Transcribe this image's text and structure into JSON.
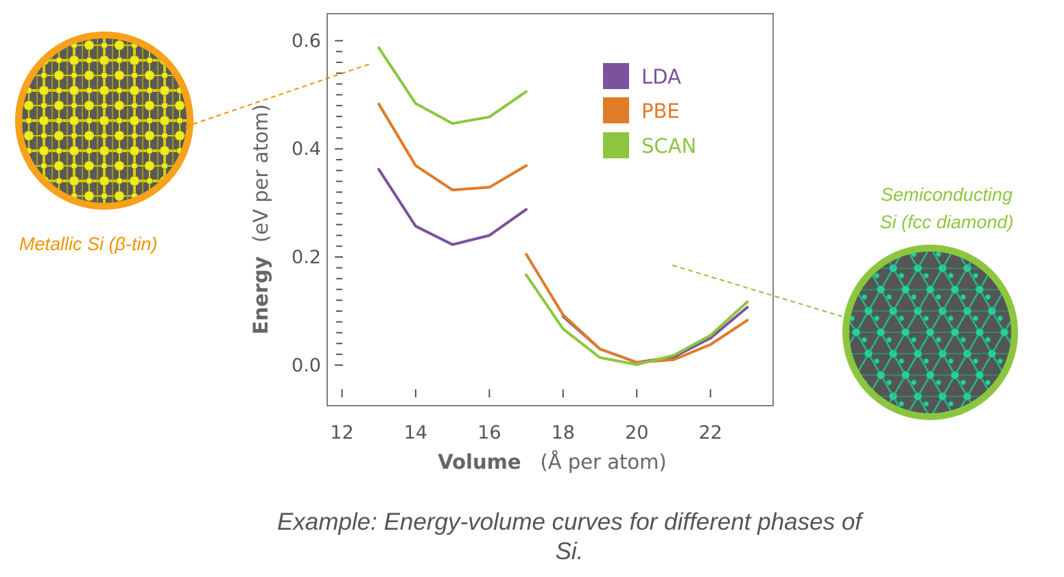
{
  "chart_data": {
    "type": "line",
    "xlabel_bold": "Volume",
    "xlabel_unit": "(Å per atom)",
    "ylabel_bold": "Energy",
    "ylabel_unit": "(eV per atom)",
    "xlim": [
      11.6,
      23.7
    ],
    "ylim": [
      -0.075,
      0.65
    ],
    "xticks": [
      12,
      14,
      16,
      18,
      20,
      22
    ],
    "xtick_labels": [
      "12",
      "14",
      "16",
      "18",
      "20",
      "22"
    ],
    "yticks": [
      0.0,
      0.2,
      0.4,
      0.6
    ],
    "ytick_labels": [
      "0.0",
      "0.2",
      "0.4",
      "0.6"
    ],
    "legend_position": "top-right",
    "series": [
      {
        "name": "LDA",
        "color": "#7B529E",
        "segments": [
          {
            "x": [
              13,
              14,
              15,
              16,
              17
            ],
            "y": [
              0.362,
              0.257,
              0.223,
              0.24,
              0.288
            ]
          },
          {
            "x": [
              18,
              19,
              20,
              21,
              22,
              23
            ],
            "y": [
              0.09,
              0.03,
              0.005,
              0.015,
              0.05,
              0.107
            ]
          }
        ]
      },
      {
        "name": "PBE",
        "color": "#E07B28",
        "segments": [
          {
            "x": [
              13,
              14,
              15,
              16,
              17
            ],
            "y": [
              0.483,
              0.369,
              0.324,
              0.329,
              0.369
            ]
          },
          {
            "x": [
              17,
              18,
              19,
              20,
              21,
              22,
              23
            ],
            "y": [
              0.205,
              0.093,
              0.03,
              0.005,
              0.01,
              0.038,
              0.083
            ]
          }
        ]
      },
      {
        "name": "SCAN",
        "color": "#8CC63F",
        "segments": [
          {
            "x": [
              13,
              14,
              15,
              16,
              17
            ],
            "y": [
              0.587,
              0.484,
              0.447,
              0.459,
              0.506
            ]
          },
          {
            "x": [
              17,
              18,
              19,
              20,
              21,
              22,
              23
            ],
            "y": [
              0.167,
              0.067,
              0.014,
              0.001,
              0.018,
              0.055,
              0.117
            ]
          }
        ]
      }
    ]
  },
  "annotations": {
    "metallic_label": "Metallic Si (β-tin)",
    "metallic_color": "#F39200",
    "semiconducting_line1": "Semiconducting",
    "semiconducting_line2": "Si (fcc diamond)",
    "semiconducting_color": "#8CC63F"
  },
  "caption": {
    "line1": "Example: Energy-volume curves for different phases of",
    "line2": "Si."
  }
}
